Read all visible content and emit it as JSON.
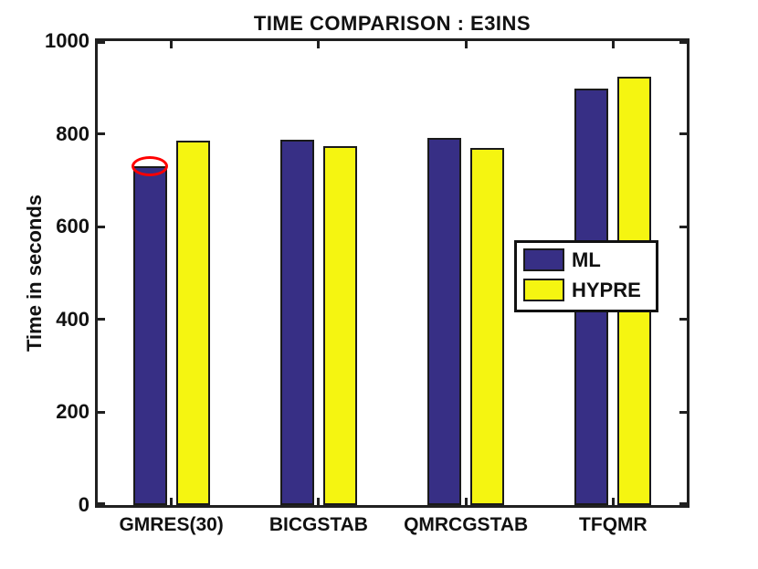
{
  "chart_data": {
    "type": "bar",
    "title": "TIME COMPARISON : E3INS",
    "xlabel": "",
    "ylabel": "Time in seconds",
    "categories": [
      "GMRES(30)",
      "BICGSTAB",
      "QMRCGSTAB",
      "TFQMR"
    ],
    "series": [
      {
        "name": "ML",
        "color": "#372F85",
        "values": [
          730,
          788,
          791,
          898
        ]
      },
      {
        "name": "HYPRE",
        "color": "#F5F511",
        "values": [
          785,
          774,
          770,
          923
        ]
      }
    ],
    "ylim": [
      0,
      1000
    ],
    "yticks": [
      0,
      200,
      400,
      600,
      800,
      1000
    ],
    "grid": false,
    "legend_position": "middle-right",
    "annotation": {
      "shape": "ellipse",
      "color": "#ff0000",
      "category": "GMRES(30)",
      "series": "ML",
      "meaning": "highlighted lowest ML time"
    }
  },
  "colors": {
    "ml_bar": "#372F85",
    "hypre_bar": "#F5F511",
    "bar_edge": "#1a1a1a",
    "axis": "#202020",
    "annotation": "#ff0000",
    "background": "#ffffff",
    "text": "#111111"
  }
}
